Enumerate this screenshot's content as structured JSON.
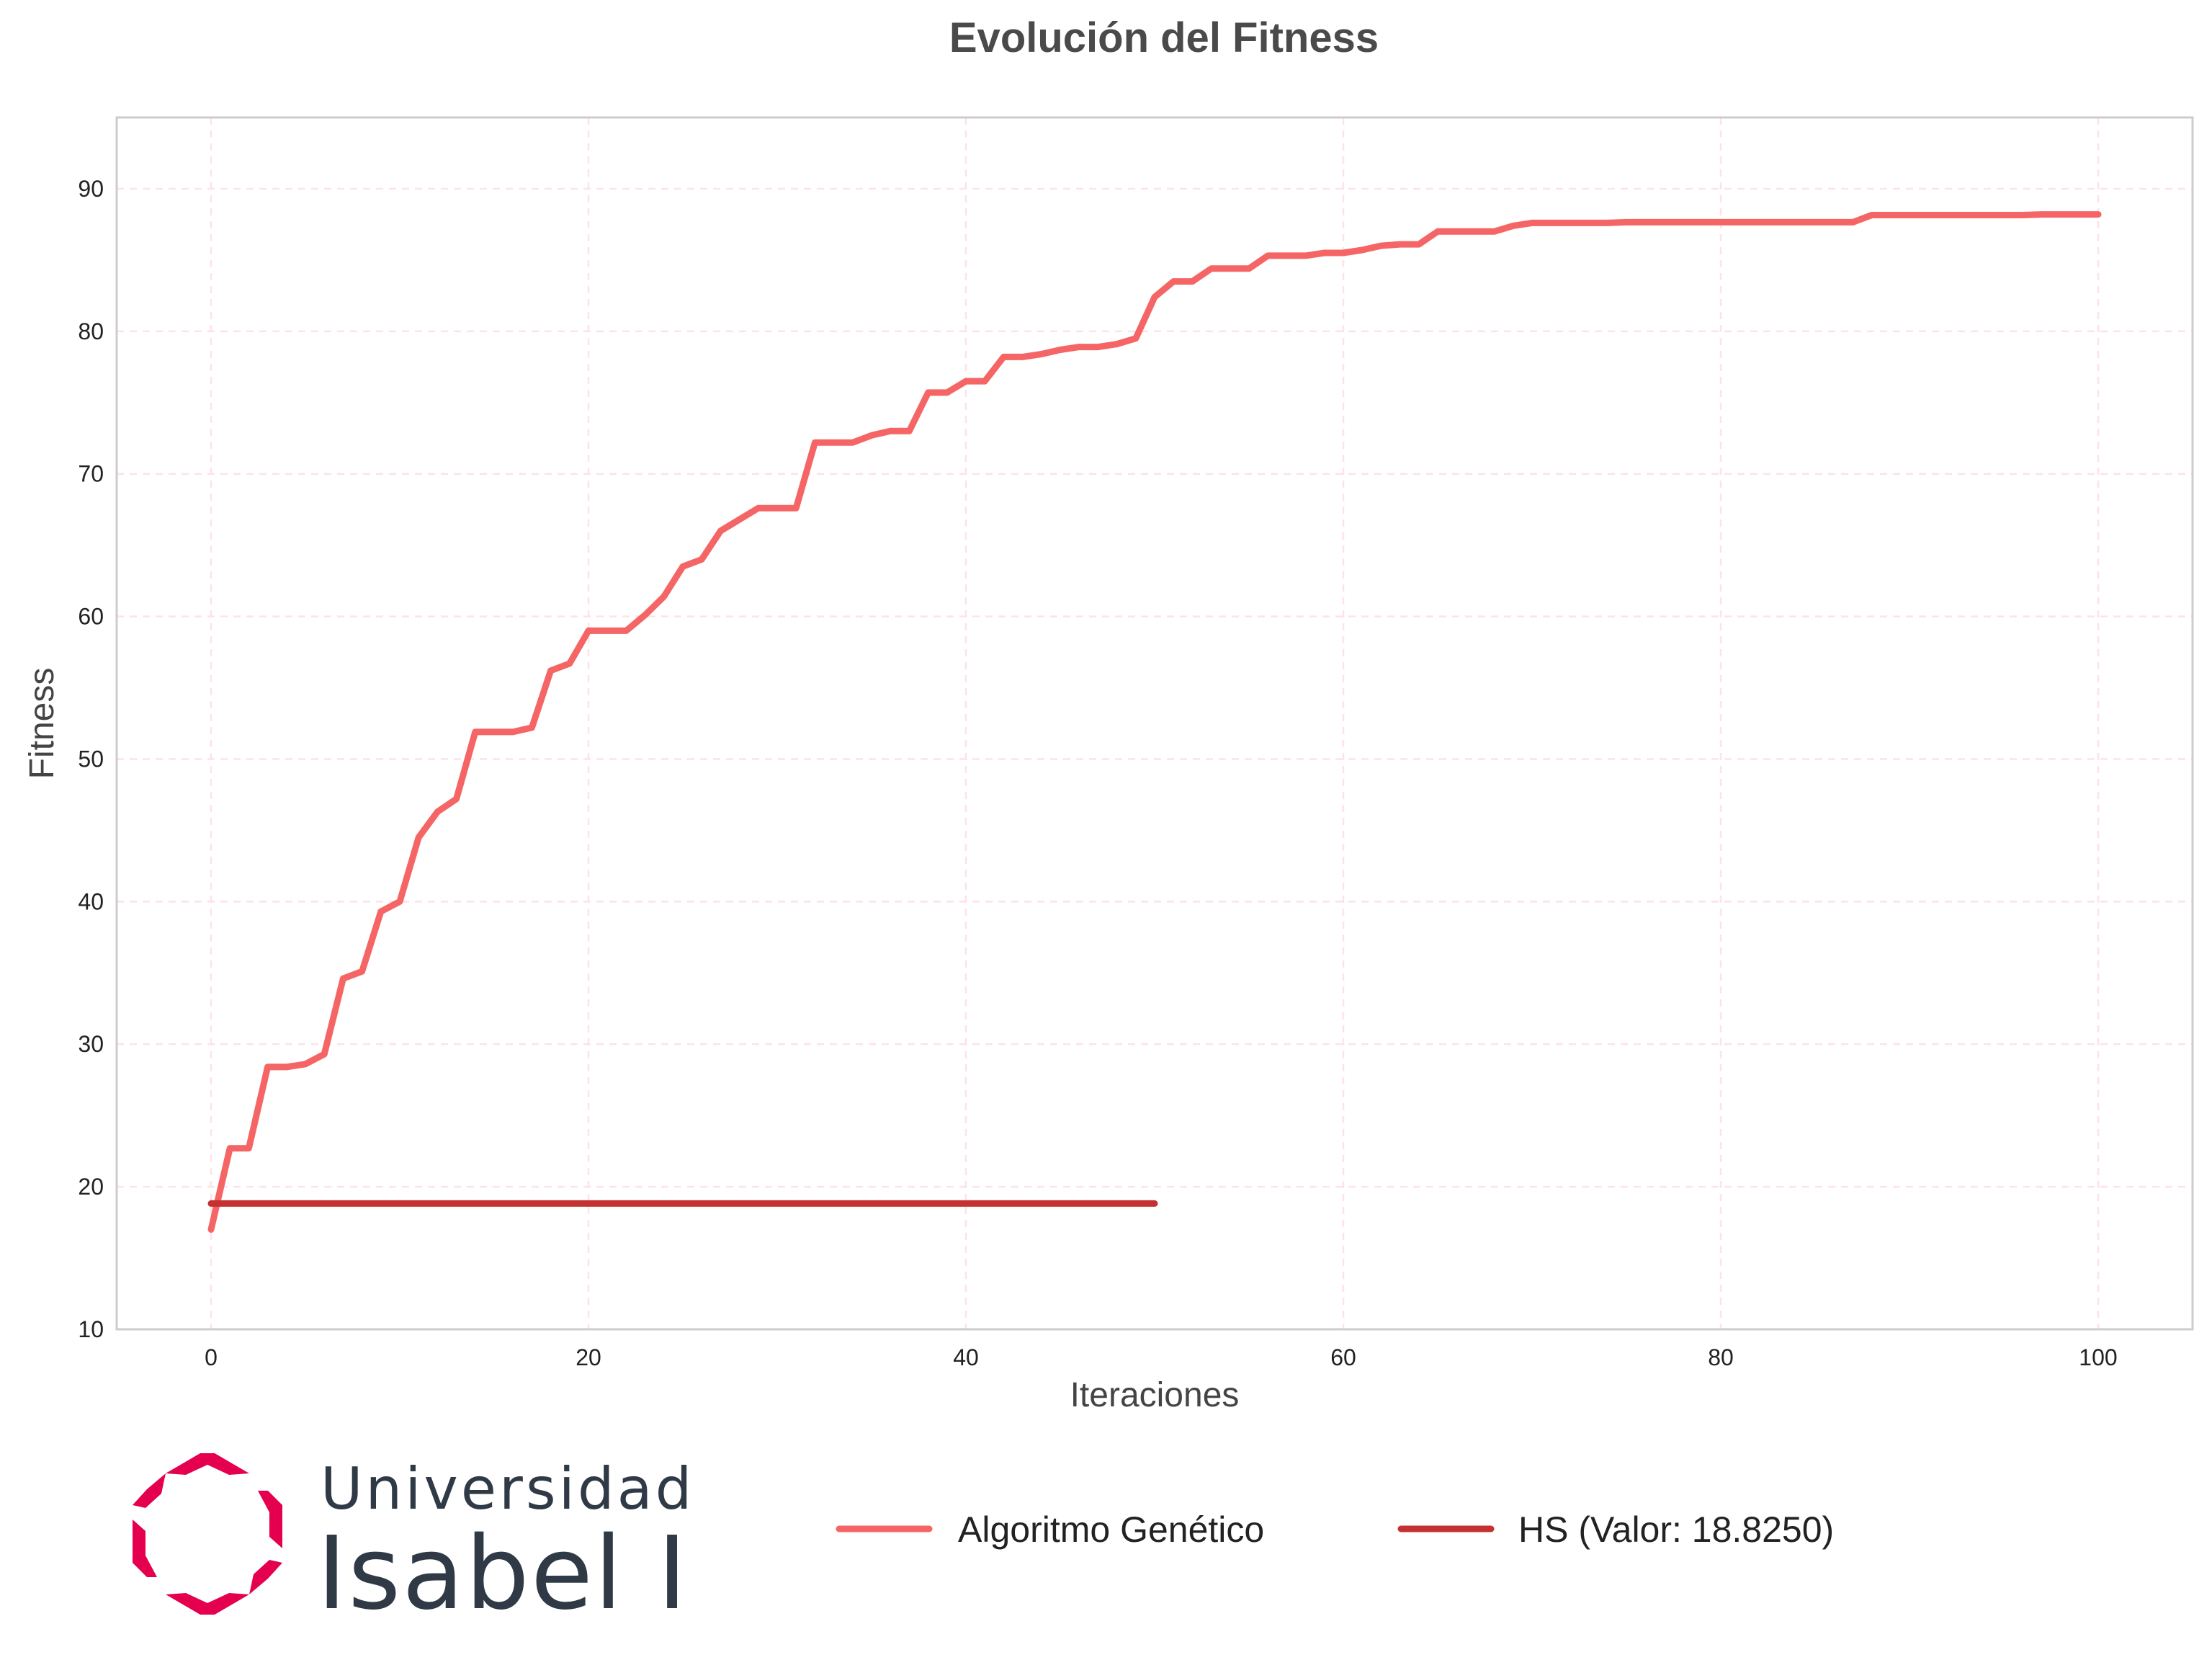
{
  "chart_data": {
    "type": "line",
    "title": "Evolución del Fitness",
    "xlabel": "Iteraciones",
    "ylabel": "Fitness",
    "xlim": [
      -5,
      105
    ],
    "ylim": [
      10,
      95
    ],
    "xticks": [
      0,
      20,
      40,
      60,
      80,
      100
    ],
    "yticks": [
      10,
      20,
      30,
      40,
      50,
      60,
      70,
      80,
      90
    ],
    "grid": true,
    "legend_position": "bottom",
    "series": [
      {
        "name": "Algoritmo Genético",
        "color": "#f56565",
        "x": [
          0,
          1,
          2,
          3,
          4,
          5,
          6,
          7,
          8,
          9,
          10,
          11,
          12,
          13,
          14,
          15,
          16,
          17,
          18,
          19,
          20,
          21,
          22,
          23,
          24,
          25,
          26,
          27,
          28,
          29,
          30,
          31,
          32,
          33,
          34,
          35,
          36,
          37,
          38,
          39,
          40,
          41,
          42,
          43,
          44,
          45,
          46,
          47,
          48,
          49,
          50,
          51,
          52,
          53,
          54,
          55,
          56,
          57,
          58,
          59,
          60,
          61,
          62,
          63,
          64,
          65,
          66,
          67,
          68,
          69,
          70,
          71,
          72,
          73,
          74,
          75,
          76,
          77,
          78,
          79,
          80,
          81,
          82,
          83,
          84,
          85,
          86,
          87,
          88,
          89,
          90,
          91,
          92,
          93,
          94,
          95,
          96,
          97,
          98,
          99,
          100
        ],
        "y": [
          17.0,
          22.7,
          22.7,
          28.4,
          28.4,
          28.6,
          29.3,
          34.6,
          35.1,
          39.3,
          40.0,
          44.5,
          46.3,
          47.2,
          51.9,
          51.9,
          51.9,
          52.2,
          56.2,
          56.7,
          59.0,
          59.0,
          59.0,
          60.1,
          61.4,
          63.5,
          64.0,
          66.0,
          66.8,
          67.6,
          67.6,
          67.6,
          72.2,
          72.2,
          72.2,
          72.7,
          73.0,
          73.0,
          75.7,
          75.7,
          76.5,
          76.5,
          78.2,
          78.2,
          78.4,
          78.7,
          78.9,
          78.9,
          79.1,
          79.5,
          82.4,
          83.5,
          83.5,
          84.4,
          84.4,
          84.4,
          85.3,
          85.3,
          85.3,
          85.5,
          85.5,
          85.7,
          86.0,
          86.1,
          86.1,
          87.0,
          87.0,
          87.0,
          87.0,
          87.4,
          87.6,
          87.6,
          87.6,
          87.6,
          87.6,
          87.65,
          87.65,
          87.65,
          87.65,
          87.65,
          87.65,
          87.65,
          87.65,
          87.65,
          87.65,
          87.65,
          87.65,
          87.65,
          88.15,
          88.15,
          88.15,
          88.15,
          88.15,
          88.15,
          88.15,
          88.15,
          88.15,
          88.2,
          88.2,
          88.2,
          88.2
        ]
      },
      {
        "name": "HS (Valor: 18.8250)",
        "color": "#c53030",
        "x": [
          0,
          50
        ],
        "y": [
          18.825,
          18.825
        ]
      }
    ]
  },
  "logo": {
    "line1": "Universidad",
    "line2": "Isabel I",
    "brand_color": "#e4004f",
    "text_color": "#2f3a46"
  },
  "colors": {
    "grid": "#fde2e8",
    "axes_frame": "#cccccc",
    "title": "#4a4a4a"
  }
}
